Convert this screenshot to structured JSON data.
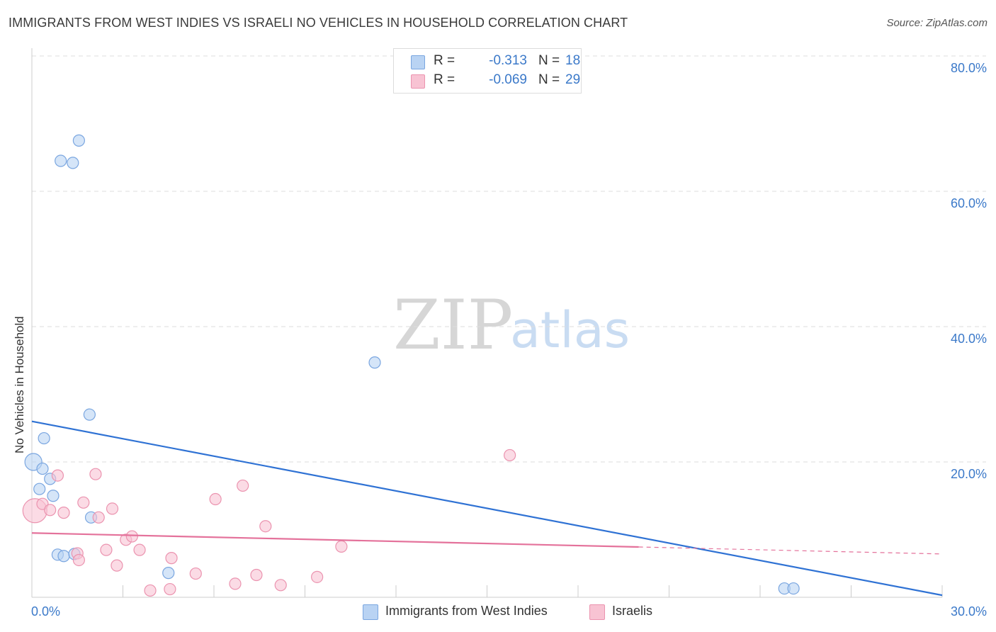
{
  "title": "IMMIGRANTS FROM WEST INDIES VS ISRAELI NO VEHICLES IN HOUSEHOLD CORRELATION CHART",
  "source": "Source: ZipAtlas.com",
  "watermark": {
    "zip": "ZIP",
    "atlas": "atlas"
  },
  "colors": {
    "blue_fill": "#b9d3f3",
    "blue_stroke": "#7aa6e0",
    "blue_line": "#2f72d4",
    "pink_fill": "#f8c3d3",
    "pink_stroke": "#eb93af",
    "pink_line": "#e4729b",
    "axis_text": "#3b79c9",
    "grid": "#dddddd"
  },
  "stats": [
    {
      "r_label": "R =",
      "r_value": "-0.313",
      "n_label": "N =",
      "n_value": "18",
      "color": "blue"
    },
    {
      "r_label": "R =",
      "r_value": "-0.069",
      "n_label": "N =",
      "n_value": "29",
      "color": "pink"
    }
  ],
  "legend": [
    {
      "label": "Immigrants from West Indies",
      "color": "blue"
    },
    {
      "label": "Israelis",
      "color": "pink"
    }
  ],
  "chart_data": {
    "type": "scatter",
    "title": "IMMIGRANTS FROM WEST INDIES VS ISRAELI NO VEHICLES IN HOUSEHOLD CORRELATION CHART",
    "xlabel": "",
    "ylabel": "No Vehicles in Household",
    "xlim": [
      0,
      30
    ],
    "ylim": [
      0,
      80
    ],
    "x_tick_labels": [
      "0.0%",
      "30.0%"
    ],
    "y_ticks": [
      20,
      40,
      60,
      80
    ],
    "y_tick_labels": [
      "20.0%",
      "40.0%",
      "60.0%",
      "80.0%"
    ],
    "grid": true,
    "series": [
      {
        "name": "Immigrants from West Indies",
        "color": "blue",
        "points": [
          [
            0.05,
            20.0
          ],
          [
            0.35,
            19.0
          ],
          [
            0.6,
            17.5
          ],
          [
            0.4,
            23.5
          ],
          [
            0.25,
            16.0
          ],
          [
            0.7,
            15.0
          ],
          [
            0.95,
            64.5
          ],
          [
            1.35,
            64.2
          ],
          [
            1.55,
            67.5
          ],
          [
            1.9,
            27.0
          ],
          [
            1.95,
            11.8
          ],
          [
            0.85,
            6.3
          ],
          [
            1.05,
            6.1
          ],
          [
            1.4,
            6.4
          ],
          [
            4.5,
            3.6
          ],
          [
            11.3,
            34.7
          ],
          [
            24.8,
            1.3
          ],
          [
            25.1,
            1.3
          ]
        ],
        "trend": {
          "x": [
            0,
            30
          ],
          "y": [
            26.0,
            0.3
          ],
          "dashed_from": null
        }
      },
      {
        "name": "Israelis",
        "color": "pink",
        "points": [
          [
            0.1,
            12.8
          ],
          [
            0.35,
            13.8
          ],
          [
            0.6,
            12.9
          ],
          [
            0.85,
            18.0
          ],
          [
            1.05,
            12.5
          ],
          [
            1.5,
            6.5
          ],
          [
            1.55,
            5.5
          ],
          [
            1.7,
            14.0
          ],
          [
            2.1,
            18.2
          ],
          [
            2.2,
            11.8
          ],
          [
            2.45,
            7.0
          ],
          [
            2.8,
            4.7
          ],
          [
            2.65,
            13.1
          ],
          [
            3.1,
            8.5
          ],
          [
            3.3,
            9.0
          ],
          [
            3.55,
            7.0
          ],
          [
            3.9,
            1.0
          ],
          [
            4.55,
            1.2
          ],
          [
            4.6,
            5.8
          ],
          [
            5.4,
            3.5
          ],
          [
            6.05,
            14.5
          ],
          [
            6.7,
            2.0
          ],
          [
            6.95,
            16.5
          ],
          [
            7.4,
            3.3
          ],
          [
            7.7,
            10.5
          ],
          [
            8.2,
            1.8
          ],
          [
            9.4,
            3.0
          ],
          [
            10.2,
            7.5
          ],
          [
            15.75,
            21.0
          ]
        ],
        "trend": {
          "x": [
            0,
            30
          ],
          "y": [
            9.5,
            6.4
          ],
          "dashed_from": 20.0
        }
      }
    ]
  }
}
